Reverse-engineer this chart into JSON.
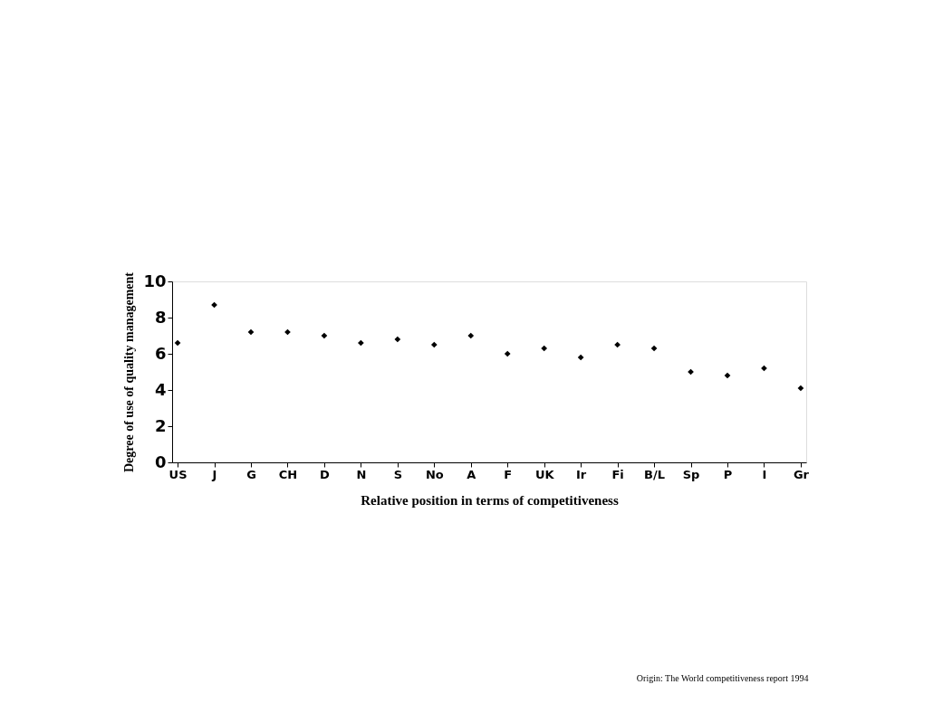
{
  "chart_data": {
    "type": "scatter",
    "xlabel": "Relative position in terms of competitiveness",
    "ylabel": "Degree of use of quality management",
    "categories": [
      "US",
      "J",
      "G",
      "CH",
      "D",
      "N",
      "S",
      "No",
      "A",
      "F",
      "UK",
      "Ir",
      "Fi",
      "B/L",
      "Sp",
      "P",
      "I",
      "Gr"
    ],
    "series": [
      {
        "color": "#000000",
        "values": [
          6.6,
          8.7,
          7.2,
          7.2,
          7.0,
          6.6,
          6.8,
          6.5,
          7.0,
          6.0,
          6.3,
          5.8,
          6.5,
          6.3,
          5.0,
          4.8,
          5.2,
          4.1
        ]
      }
    ],
    "ylim": [
      0,
      10
    ],
    "yticks": [
      0,
      2,
      4,
      6,
      8,
      10
    ],
    "marker": "diamond",
    "grid": false,
    "annotations": [
      "Origin: The World competitiveness report 1994"
    ]
  }
}
